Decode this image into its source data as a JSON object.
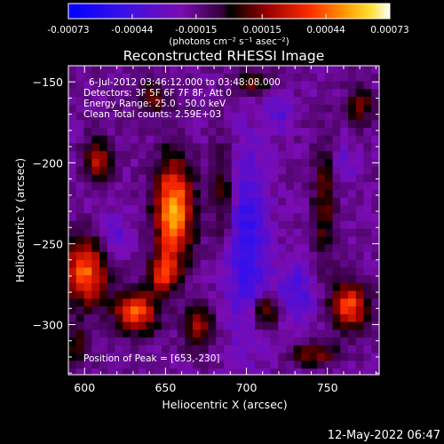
{
  "chart_data": {
    "type": "heatmap",
    "title": "Reconstructed RHESSI Image",
    "xlabel": "Heliocentric X (arcsec)",
    "ylabel": "Heliocentric Y (arcsec)",
    "xlim": [
      590,
      782
    ],
    "ylim": [
      -331,
      -140
    ],
    "x_ticks": [
      600,
      650,
      700,
      750
    ],
    "y_ticks": [
      -150,
      -200,
      -250,
      -300
    ],
    "colorbar": {
      "ticks": [
        "-0.00073",
        "-0.00044",
        "-0.00015",
        "0.00015",
        "0.00044",
        "0.00073"
      ],
      "values": [
        -0.00073,
        -0.00044,
        -0.00015,
        0.00015,
        0.00044,
        0.00073
      ],
      "range": [
        -0.00073,
        0.00073
      ],
      "units": "(photons cm⁻² s⁻¹ asec⁻²)"
    },
    "annotations": [
      "6-Jul-2012 03:46:12.000 to 03:48:08.000",
      "Detectors: 3F 5F 6F 7F 8F, Att 0",
      "Energy Range: 25.0 - 50.0 keV",
      "Clean    Total counts: 2.59E+03"
    ],
    "peak_label": "Position of Peak = [653,-230]",
    "peak": [
      653,
      -230
    ],
    "sources": [
      {
        "x": 655,
        "y": -230,
        "sx": 8,
        "sy": 22,
        "amp": 0.00073
      },
      {
        "x": 648,
        "y": -268,
        "sx": 6,
        "sy": 8,
        "amp": 0.00045
      },
      {
        "x": 600,
        "y": -268,
        "sx": 10,
        "sy": 14,
        "amp": 0.0006
      },
      {
        "x": 608,
        "y": -198,
        "sx": 6,
        "sy": 9,
        "amp": 0.00038
      },
      {
        "x": 632,
        "y": -292,
        "sx": 9,
        "sy": 9,
        "amp": 0.00058
      },
      {
        "x": 670,
        "y": -300,
        "sx": 6,
        "sy": 10,
        "amp": 0.00036
      },
      {
        "x": 686,
        "y": -220,
        "sx": 5,
        "sy": 22,
        "amp": 0.00028
      },
      {
        "x": 712,
        "y": -292,
        "sx": 7,
        "sy": 7,
        "amp": 0.0004
      },
      {
        "x": 764,
        "y": -288,
        "sx": 8,
        "sy": 10,
        "amp": 0.00055
      },
      {
        "x": 770,
        "y": -165,
        "sx": 5,
        "sy": 8,
        "amp": 0.00035
      },
      {
        "x": 748,
        "y": -225,
        "sx": 5,
        "sy": 28,
        "amp": 0.00028
      },
      {
        "x": 642,
        "y": -160,
        "sx": 7,
        "sy": 7,
        "amp": 0.00028
      },
      {
        "x": 703,
        "y": -150,
        "sx": 8,
        "sy": 5,
        "amp": 0.0003
      },
      {
        "x": 742,
        "y": -318,
        "sx": 10,
        "sy": 5,
        "amp": 0.00032
      },
      {
        "x": 596,
        "y": -312,
        "sx": 5,
        "sy": 8,
        "amp": 0.0003
      },
      {
        "x": 700,
        "y": -250,
        "sx": 9,
        "sy": 40,
        "amp": -0.00035
      },
      {
        "x": 730,
        "y": -280,
        "sx": 9,
        "sy": 14,
        "amp": -0.00025
      },
      {
        "x": 720,
        "y": -170,
        "sx": 6,
        "sy": 8,
        "amp": -0.0002
      },
      {
        "x": 620,
        "y": -245,
        "sx": 6,
        "sy": 10,
        "amp": -0.00018
      },
      {
        "x": 760,
        "y": -200,
        "sx": 5,
        "sy": 9,
        "amp": -0.00015
      }
    ]
  },
  "footer": {
    "timestamp": "12-May-2022 06:47"
  }
}
